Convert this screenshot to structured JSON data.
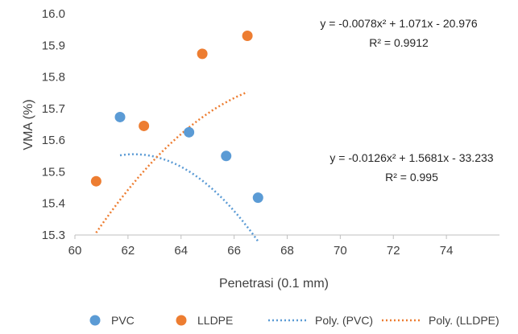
{
  "chart_data": {
    "type": "scatter",
    "title": "",
    "xlabel": "Penetrasi (0.1 mm)",
    "ylabel": "VMA (%)",
    "xlim": [
      60,
      76
    ],
    "ylim": [
      15.3,
      16.0
    ],
    "xticks": [
      "60",
      "62",
      "64",
      "66",
      "68",
      "70",
      "72",
      "74"
    ],
    "yticks": [
      "15.3",
      "15.4",
      "15.5",
      "15.6",
      "15.7",
      "15.8",
      "15.9",
      "16.0"
    ],
    "grid": false,
    "legend_position": "bottom",
    "series": [
      {
        "name": "PVC",
        "kind": "points",
        "color": "#5B9BD5",
        "x": [
          61.7,
          64.3,
          65.7,
          66.9
        ],
        "y": [
          15.673,
          15.625,
          15.55,
          15.418
        ]
      },
      {
        "name": "LLDPE",
        "kind": "points",
        "color": "#ED7D31",
        "x": [
          60.8,
          62.6,
          64.8,
          66.5
        ],
        "y": [
          15.47,
          15.645,
          15.873,
          15.93
        ]
      },
      {
        "name": "Poly. (PVC)",
        "kind": "trendline",
        "color": "#5B9BD5",
        "coefficients": [
          -0.0126,
          1.5681,
          -33.233
        ],
        "x_range": [
          61.7,
          66.9
        ]
      },
      {
        "name": "Poly. (LLDPE)",
        "kind": "trendline",
        "color": "#ED7D31",
        "coefficients": [
          -0.0078,
          1.071,
          -20.976
        ],
        "x_range": [
          60.8,
          66.5
        ]
      }
    ],
    "annotations": [
      {
        "series": "Poly. (LLDPE)",
        "equation": "y = -0.0078x² + 1.071x - 20.976",
        "r2": "R² = 0.9912"
      },
      {
        "series": "Poly. (PVC)",
        "equation": "y = -0.0126x² + 1.5681x - 33.233",
        "r2": "R² = 0.995"
      }
    ]
  }
}
